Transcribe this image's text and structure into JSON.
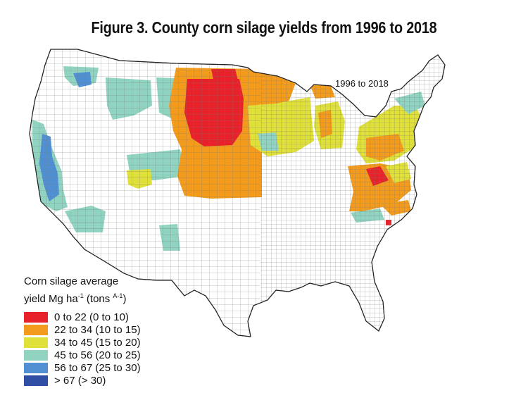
{
  "title": "Figure 3. County corn silage yields from 1996 to 2018",
  "map_period_label": "1996 to 2018",
  "legend": {
    "title_line1": "Corn silage average",
    "title_line2_prefix": "yield Mg ha",
    "title_line2_sup1": "-1",
    "title_line2_mid": " (tons ",
    "title_line2_sup2": "A-1",
    "title_line2_suffix": ")",
    "classes": [
      {
        "label": "0 to 22 (0 to 10)",
        "color": "#e8222a"
      },
      {
        "label": "22 to 34 (10 to 15)",
        "color": "#f29b1d"
      },
      {
        "label": "34 to 45 (15 to 20)",
        "color": "#dfe03a"
      },
      {
        "label": "45 to 56 (20 to 25)",
        "color": "#8fd3c0"
      },
      {
        "label": "56 to 67 (25 to 30)",
        "color": "#4f8fd2"
      },
      {
        "label": "> 67 (> 30)",
        "color": "#2e4fa3"
      }
    ]
  },
  "colors": {
    "no_data": "#ffffff",
    "border": "#555555"
  }
}
